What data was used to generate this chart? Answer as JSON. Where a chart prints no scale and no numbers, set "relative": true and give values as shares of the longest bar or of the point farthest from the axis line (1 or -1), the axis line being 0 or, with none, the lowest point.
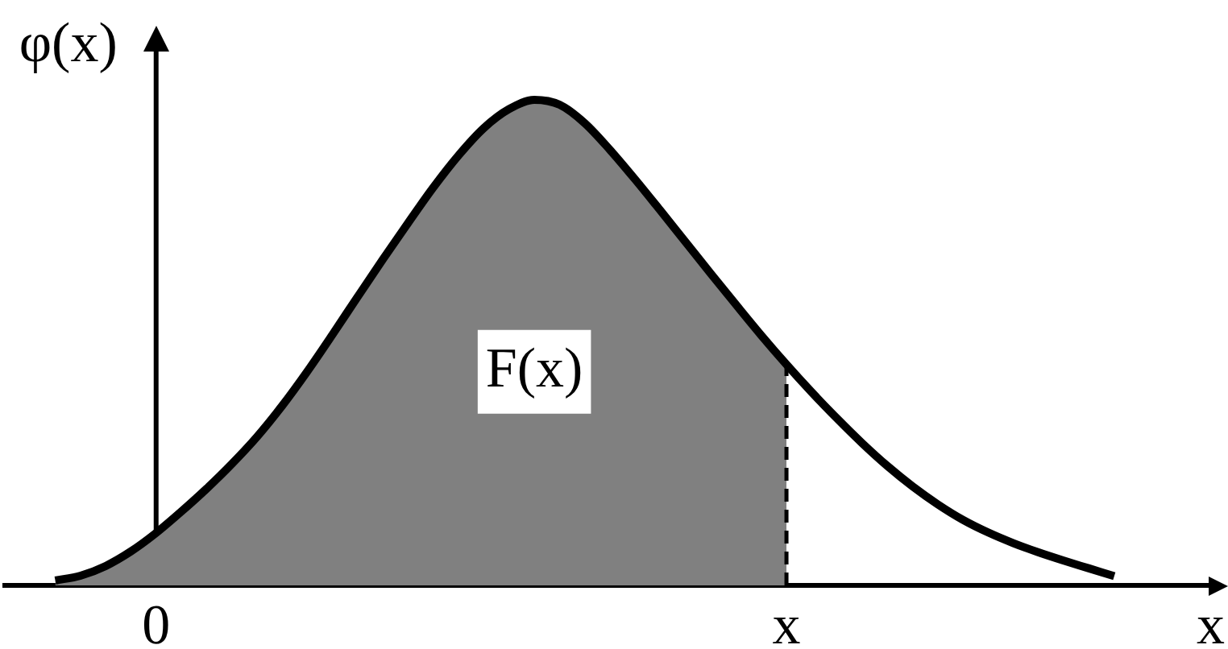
{
  "chart_data": {
    "type": "line",
    "relative": true,
    "xlabel": "x",
    "ylabel": "φ(x)",
    "categories": [
      null,
      null,
      null,
      null,
      null,
      null,
      "0",
      null,
      null,
      null,
      null,
      null,
      null,
      null,
      null,
      null,
      null,
      null,
      null,
      null,
      null,
      null,
      null,
      null,
      null,
      null,
      null,
      null,
      null,
      null,
      null,
      "x",
      null,
      null,
      null,
      null,
      null,
      null,
      null,
      null,
      null,
      null,
      null,
      null,
      null,
      null,
      null,
      null,
      null
    ],
    "series": [
      {
        "type": "area",
        "color": "#808080",
        "values": [
          null,
          null,
          0.01,
          0.02,
          0.04,
          0.07,
          0.108,
          0.152,
          0.199,
          0.25,
          0.306,
          0.37,
          0.441,
          0.517,
          0.595,
          0.672,
          0.747,
          0.82,
          0.886,
          0.942,
          0.981,
          1,
          0.99,
          0.952,
          0.897,
          0.836,
          0.772,
          0.707,
          0.642,
          0.578,
          0.515,
          0.455,
          null,
          null,
          null,
          null,
          null,
          null,
          null,
          null,
          null,
          null,
          null,
          null,
          null,
          null,
          null,
          null,
          null
        ]
      },
      {
        "color": "#000000",
        "values": [
          null,
          null,
          0.01,
          0.02,
          0.04,
          0.07,
          0.108,
          0.152,
          0.199,
          0.25,
          0.306,
          0.37,
          0.441,
          0.517,
          0.595,
          0.672,
          0.747,
          0.82,
          0.886,
          0.942,
          0.981,
          1,
          0.99,
          0.952,
          0.897,
          0.836,
          0.772,
          0.707,
          0.642,
          0.578,
          0.515,
          0.455,
          0.398,
          0.344,
          0.293,
          0.246,
          0.204,
          0.167,
          0.135,
          0.109,
          0.087,
          0.068,
          0.051,
          0.035,
          0.019,
          null,
          null,
          null,
          null
        ]
      }
    ],
    "ref_lines": [
      {
        "axis": "x",
        "value": "x",
        "color": "#000000",
        "line_style": "dashed"
      }
    ],
    "annotations": [
      "F(x)"
    ]
  }
}
